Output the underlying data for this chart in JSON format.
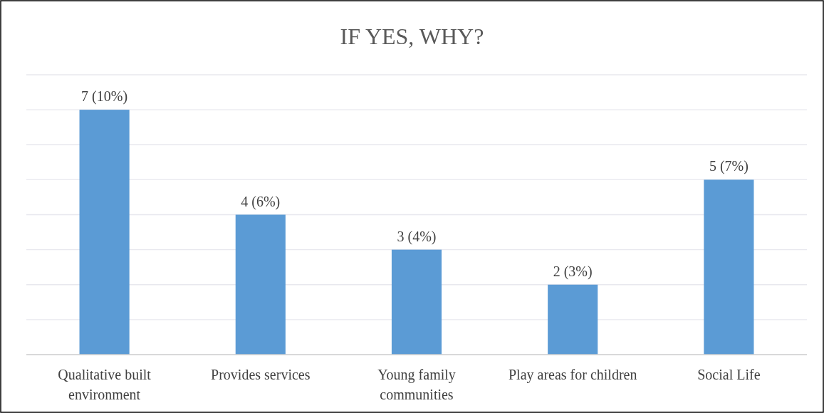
{
  "chart_data": {
    "type": "bar",
    "title": "IF YES, WHY?",
    "categories": [
      "Qualitative built environment",
      "Provides services",
      "Young family communities",
      "Play areas for children",
      "Social Life"
    ],
    "values": [
      7,
      4,
      3,
      2,
      5
    ],
    "value_labels": [
      "7 (10%)",
      "4 (6%)",
      "3 (4%)",
      "2 (3%)",
      "5 (7%)"
    ],
    "color": "#5b9bd5",
    "ylim": [
      0,
      8
    ],
    "yticks": [
      {
        "value": 0,
        "label": null
      },
      {
        "value": 1,
        "label": null
      },
      {
        "value": 2,
        "label": null
      },
      {
        "value": 3,
        "label": null
      },
      {
        "value": 4,
        "label": null
      },
      {
        "value": 5,
        "label": null
      },
      {
        "value": 6,
        "label": null
      },
      {
        "value": 7,
        "label": null
      },
      {
        "value": 8,
        "label": null
      }
    ],
    "grid": true,
    "tick_labels": "x"
  }
}
